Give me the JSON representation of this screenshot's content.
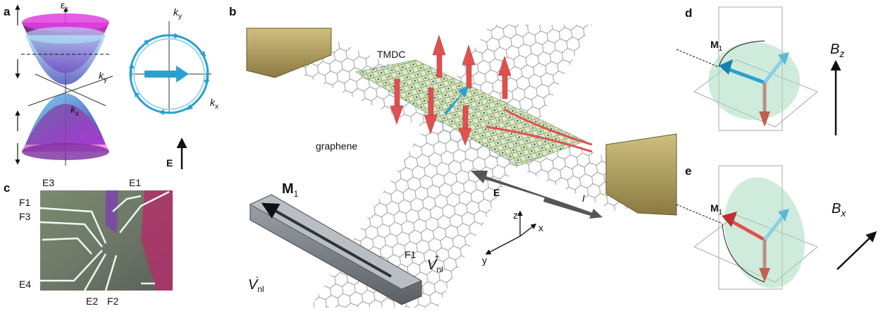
{
  "panels": {
    "a": {
      "label": "a",
      "energy_axis": {
        "base": "ε",
        "sub": "k"
      },
      "cone_axes": [
        {
          "base": "k",
          "sub": "y"
        },
        {
          "base": "k",
          "sub": "x"
        }
      ],
      "circle_axes": [
        {
          "base": "k",
          "sub": "y"
        },
        {
          "base": "k",
          "sub": "x"
        }
      ],
      "field": "E"
    },
    "b": {
      "label": "b",
      "layer_top": "TMDC",
      "layer_bottom": "graphene",
      "magnet": {
        "base": "M",
        "sub": "1"
      },
      "contact": "F1",
      "v_minus": {
        "base": "V",
        "sub": "nl",
        "sup": "-"
      },
      "v_plus": {
        "base": "V",
        "sub": "nl",
        "sup": "+"
      },
      "field": "E",
      "current": "I",
      "axes": [
        "z",
        "x",
        "y"
      ]
    },
    "c": {
      "label": "c",
      "contacts": [
        "E3",
        "E1",
        "F1",
        "F3",
        "E4",
        "E2",
        "F2"
      ]
    },
    "d": {
      "label": "d",
      "magnet": {
        "base": "M",
        "sub": "1"
      },
      "field": {
        "base": "B",
        "sub": "z"
      }
    },
    "e": {
      "label": "e",
      "magnet": {
        "base": "M",
        "sub": "1"
      },
      "field": {
        "base": "B",
        "sub": "x"
      }
    }
  }
}
